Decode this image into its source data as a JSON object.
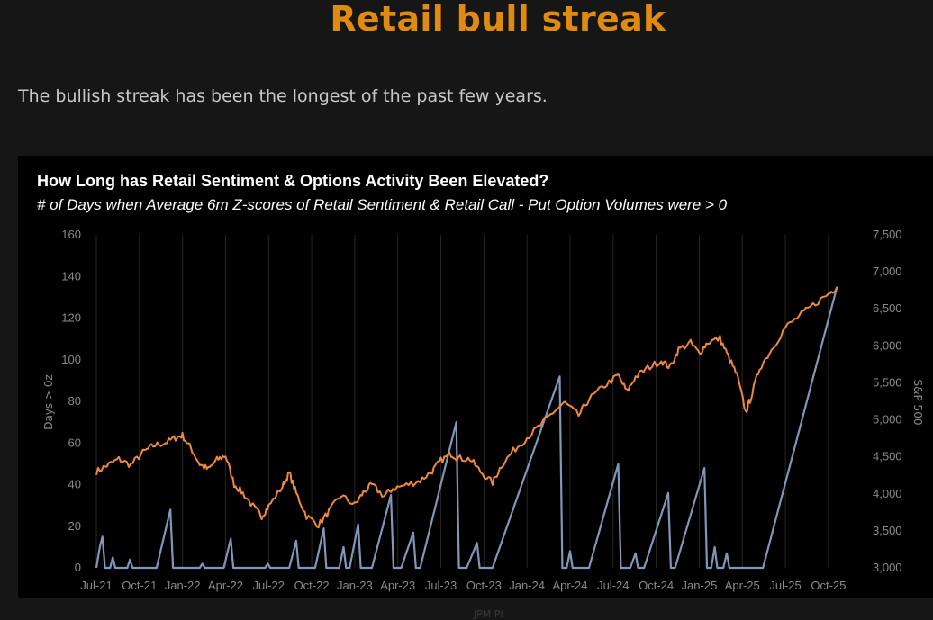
{
  "page": {
    "title": "Retail bull streak",
    "subtitle": "The bullish streak has been the longest of the past few years.",
    "caption": "JPM PI"
  },
  "colors": {
    "title": "#e08a10",
    "sp500_line": "#f08a3a",
    "streak_line": "#7f97b8",
    "grid": "#262626",
    "axis_text": "#8a8a8a"
  },
  "chart_data": {
    "type": "line",
    "title": "How Long has Retail Sentiment & Options Activity Been Elevated?",
    "subtitle": "# of Days when Average 6m Z-scores of Retail Sentiment & Retail Call - Put Option Volumes were > 0",
    "ylabel": "Days > 0z",
    "y2label": "S&P 500",
    "ylim": [
      0,
      160
    ],
    "y2lim": [
      3000,
      7500
    ],
    "yticks": [
      "0",
      "20",
      "40",
      "60",
      "80",
      "100",
      "120",
      "140",
      "160"
    ],
    "y2ticks": [
      "3,000",
      "3,500",
      "4,000",
      "4,500",
      "5,000",
      "5,500",
      "6,000",
      "6,500",
      "7,000",
      "7,500"
    ],
    "xlim": [
      2021.5,
      2025.85
    ],
    "xticks": [
      {
        "label": "Jul-21",
        "t": 2021.5
      },
      {
        "label": "Oct-21",
        "t": 2021.75
      },
      {
        "label": "Jan-22",
        "t": 2022.0
      },
      {
        "label": "Apr-22",
        "t": 2022.25
      },
      {
        "label": "Jul-22",
        "t": 2022.5
      },
      {
        "label": "Oct-22",
        "t": 2022.75
      },
      {
        "label": "Jan-23",
        "t": 2023.0
      },
      {
        "label": "Apr-23",
        "t": 2023.25
      },
      {
        "label": "Jul-23",
        "t": 2023.5
      },
      {
        "label": "Oct-23",
        "t": 2023.75
      },
      {
        "label": "Jan-24",
        "t": 2024.0
      },
      {
        "label": "Apr-24",
        "t": 2024.25
      },
      {
        "label": "Jul-24",
        "t": 2024.5
      },
      {
        "label": "Oct-24",
        "t": 2024.75
      },
      {
        "label": "Jan-25",
        "t": 2025.0
      },
      {
        "label": "Apr-25",
        "t": 2025.25
      },
      {
        "label": "Jul-25",
        "t": 2025.5
      },
      {
        "label": "Oct-25",
        "t": 2025.75
      }
    ],
    "series": [
      {
        "name": "S&P 500",
        "axis": "right",
        "points": [
          [
            2021.5,
            4300
          ],
          [
            2021.56,
            4380
          ],
          [
            2021.63,
            4470
          ],
          [
            2021.7,
            4390
          ],
          [
            2021.77,
            4560
          ],
          [
            2021.83,
            4650
          ],
          [
            2021.9,
            4690
          ],
          [
            2021.96,
            4760
          ],
          [
            2022.0,
            4790
          ],
          [
            2022.05,
            4610
          ],
          [
            2022.1,
            4400
          ],
          [
            2022.15,
            4330
          ],
          [
            2022.2,
            4460
          ],
          [
            2022.25,
            4520
          ],
          [
            2022.3,
            4130
          ],
          [
            2022.35,
            4010
          ],
          [
            2022.42,
            3800
          ],
          [
            2022.46,
            3700
          ],
          [
            2022.5,
            3830
          ],
          [
            2022.58,
            4100
          ],
          [
            2022.62,
            4280
          ],
          [
            2022.66,
            4010
          ],
          [
            2022.72,
            3700
          ],
          [
            2022.79,
            3580
          ],
          [
            2022.85,
            3760
          ],
          [
            2022.92,
            3980
          ],
          [
            2023.0,
            3850
          ],
          [
            2023.05,
            4020
          ],
          [
            2023.1,
            4120
          ],
          [
            2023.17,
            3970
          ],
          [
            2023.22,
            4070
          ],
          [
            2023.3,
            4120
          ],
          [
            2023.38,
            4180
          ],
          [
            2023.45,
            4310
          ],
          [
            2023.5,
            4450
          ],
          [
            2023.56,
            4540
          ],
          [
            2023.6,
            4480
          ],
          [
            2023.67,
            4470
          ],
          [
            2023.73,
            4300
          ],
          [
            2023.8,
            4150
          ],
          [
            2023.85,
            4380
          ],
          [
            2023.92,
            4580
          ],
          [
            2024.0,
            4760
          ],
          [
            2024.08,
            4930
          ],
          [
            2024.15,
            5100
          ],
          [
            2024.22,
            5230
          ],
          [
            2024.3,
            5060
          ],
          [
            2024.36,
            5280
          ],
          [
            2024.45,
            5460
          ],
          [
            2024.53,
            5600
          ],
          [
            2024.58,
            5380
          ],
          [
            2024.63,
            5580
          ],
          [
            2024.7,
            5700
          ],
          [
            2024.78,
            5800
          ],
          [
            2024.83,
            5710
          ],
          [
            2024.88,
            5950
          ],
          [
            2024.95,
            6040
          ],
          [
            2025.0,
            5900
          ],
          [
            2025.05,
            6050
          ],
          [
            2025.12,
            6100
          ],
          [
            2025.17,
            5850
          ],
          [
            2025.22,
            5600
          ],
          [
            2025.27,
            5100
          ],
          [
            2025.3,
            5300
          ],
          [
            2025.35,
            5700
          ],
          [
            2025.42,
            5950
          ],
          [
            2025.5,
            6250
          ],
          [
            2025.58,
            6400
          ],
          [
            2025.66,
            6550
          ],
          [
            2025.75,
            6700
          ],
          [
            2025.8,
            6800
          ]
        ]
      },
      {
        "name": "Days > 0z",
        "axis": "left",
        "points": [
          [
            2021.5,
            0
          ],
          [
            2021.52,
            10
          ],
          [
            2021.535,
            15
          ],
          [
            2021.55,
            0
          ],
          [
            2021.58,
            0
          ],
          [
            2021.595,
            5
          ],
          [
            2021.61,
            0
          ],
          [
            2021.68,
            0
          ],
          [
            2021.695,
            4
          ],
          [
            2021.71,
            0
          ],
          [
            2021.85,
            0
          ],
          [
            2021.93,
            28
          ],
          [
            2021.945,
            0
          ],
          [
            2022.1,
            0
          ],
          [
            2022.115,
            2
          ],
          [
            2022.13,
            0
          ],
          [
            2022.24,
            0
          ],
          [
            2022.28,
            14
          ],
          [
            2022.295,
            0
          ],
          [
            2022.48,
            0
          ],
          [
            2022.495,
            2
          ],
          [
            2022.51,
            0
          ],
          [
            2022.62,
            0
          ],
          [
            2022.66,
            13
          ],
          [
            2022.675,
            0
          ],
          [
            2022.77,
            0
          ],
          [
            2022.82,
            19
          ],
          [
            2022.835,
            0
          ],
          [
            2022.91,
            0
          ],
          [
            2022.935,
            10
          ],
          [
            2022.95,
            0
          ],
          [
            2022.97,
            0
          ],
          [
            2023.02,
            21
          ],
          [
            2023.035,
            0
          ],
          [
            2023.1,
            0
          ],
          [
            2023.21,
            35
          ],
          [
            2023.225,
            0
          ],
          [
            2023.27,
            0
          ],
          [
            2023.34,
            17
          ],
          [
            2023.355,
            0
          ],
          [
            2023.38,
            0
          ],
          [
            2023.59,
            70
          ],
          [
            2023.605,
            0
          ],
          [
            2023.65,
            0
          ],
          [
            2023.71,
            12
          ],
          [
            2023.725,
            0
          ],
          [
            2023.8,
            0
          ],
          [
            2024.19,
            92
          ],
          [
            2024.205,
            0
          ],
          [
            2024.23,
            0
          ],
          [
            2024.25,
            8
          ],
          [
            2024.265,
            0
          ],
          [
            2024.36,
            0
          ],
          [
            2024.53,
            50
          ],
          [
            2024.545,
            0
          ],
          [
            2024.6,
            0
          ],
          [
            2024.63,
            7
          ],
          [
            2024.645,
            0
          ],
          [
            2024.68,
            0
          ],
          [
            2024.82,
            36
          ],
          [
            2024.835,
            0
          ],
          [
            2024.86,
            0
          ],
          [
            2025.03,
            48
          ],
          [
            2025.045,
            0
          ],
          [
            2025.07,
            0
          ],
          [
            2025.09,
            10
          ],
          [
            2025.105,
            0
          ],
          [
            2025.14,
            0
          ],
          [
            2025.16,
            7
          ],
          [
            2025.175,
            0
          ],
          [
            2025.37,
            0
          ],
          [
            2025.8,
            135
          ]
        ]
      }
    ]
  }
}
